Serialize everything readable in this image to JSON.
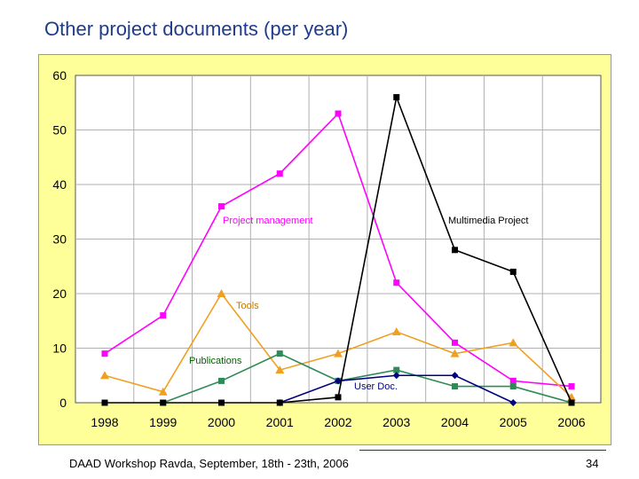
{
  "slide": {
    "title": "Other project documents (per year)",
    "footer": "DAAD Workshop Ravda, September, 18th - 23th, 2006",
    "page_number": "34"
  },
  "colors": {
    "chart_background": "#ffff99",
    "plot_background": "#ffffff",
    "grid": "#b0b0b0",
    "title": "#1f3b8c"
  },
  "chart_data": {
    "type": "line",
    "title": "",
    "xlabel": "",
    "ylabel": "",
    "categories": [
      "1998",
      "1999",
      "2000",
      "2001",
      "2002",
      "2003",
      "2004",
      "2005",
      "2006"
    ],
    "ylim": [
      0,
      60
    ],
    "yticks": [
      0,
      10,
      20,
      30,
      40,
      50,
      60
    ],
    "grid": true,
    "series": [
      {
        "name": "Project management",
        "color": "#ff00ff",
        "marker": "square",
        "values": [
          9,
          16,
          36,
          42,
          53,
          22,
          11,
          4,
          3
        ],
        "label_series": true
      },
      {
        "name": "Tools",
        "color": "#f0a020",
        "marker": "triangle",
        "values": [
          5,
          2,
          20,
          6,
          9,
          13,
          9,
          11,
          1
        ]
      },
      {
        "name": "Publications",
        "color": "#2e8b57",
        "marker": "square",
        "values": [
          null,
          0,
          4,
          9,
          4,
          6,
          3,
          3,
          0
        ]
      },
      {
        "name": "User Doc.",
        "color": "#000080",
        "marker": "diamond",
        "values": [
          null,
          null,
          null,
          0,
          4,
          5,
          5,
          0,
          null
        ]
      },
      {
        "name": "Multimedia Project",
        "color": "#000000",
        "marker": "square",
        "values": [
          0,
          0,
          0,
          0,
          1,
          56,
          28,
          24,
          0
        ]
      }
    ],
    "labels": [
      {
        "text": "Project management",
        "color": "#ff00ff"
      },
      {
        "text": "Multimedia Project",
        "color": "#000000"
      },
      {
        "text": "Tools",
        "color": "#c07800"
      },
      {
        "text": "Publications",
        "color": "#006400"
      },
      {
        "text": "User Doc.",
        "color": "#000080"
      }
    ]
  }
}
